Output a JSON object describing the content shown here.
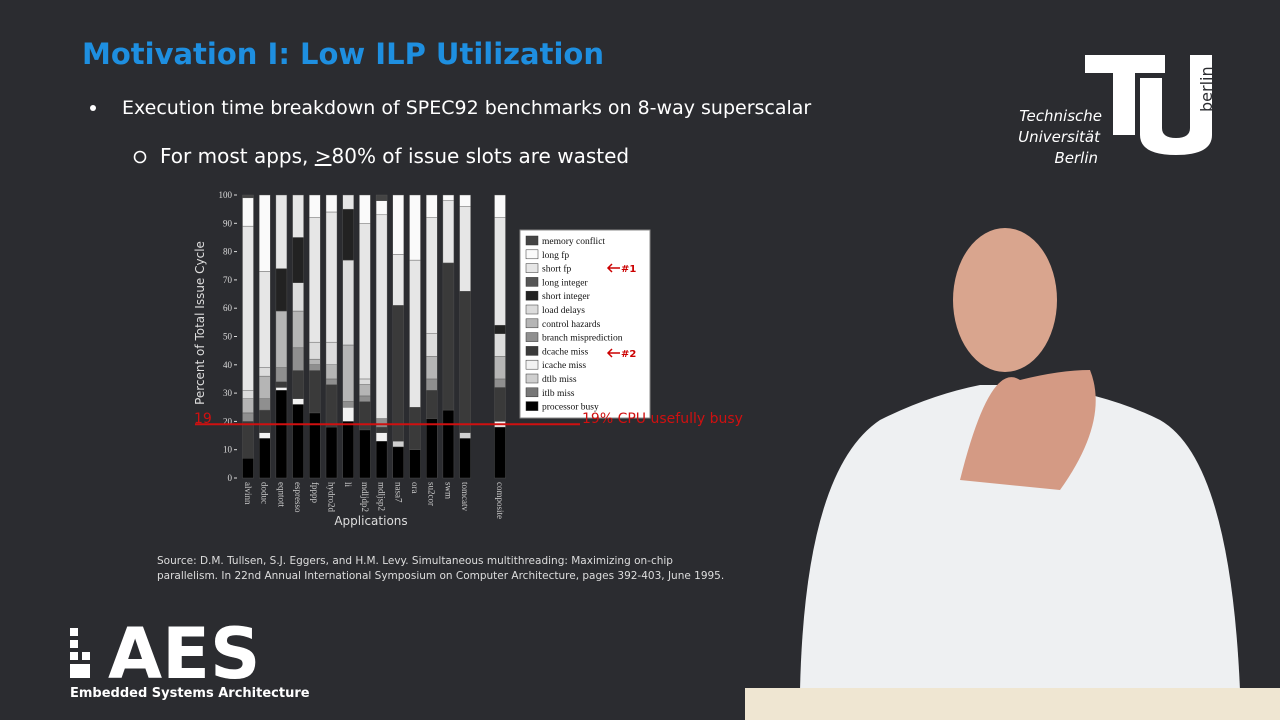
{
  "slide": {
    "title": "Motivation I: Low ILP Utilization",
    "bullet1": "Execution time breakdown of SPEC92 benchmarks on 8-way superscalar",
    "bullet2_pre": "For most apps, ",
    "bullet2_u": ">",
    "bullet2_post": "80% of issue slots are wasted",
    "source1": "Source: D.M. Tullsen, S.J. Eggers, and H.M. Levy. Simultaneous multithreading: Maximizing on-chip",
    "source2": "parallelism.  In 22nd Annual International Symposium on Computer Architecture, pages 392-403, June 1995.",
    "tu_lines": [
      "Technische",
      "Universität",
      "Berlin"
    ],
    "tu_side": "berlin",
    "aes": "AES",
    "aes_sub": "Embedded Systems Architecture"
  },
  "chart_data": {
    "type": "stacked_bar",
    "ylabel": "Percent of Total Issue Cycle",
    "xlabel": "Applications",
    "categories": [
      "alvinn",
      "doduc",
      "eqntott",
      "espresso",
      "fpppp",
      "hydro2d",
      "li",
      "mdljdp2",
      "mdljsp2",
      "nasa7",
      "ora",
      "su2cor",
      "swm",
      "tomcatv",
      "composite"
    ],
    "ylim": [
      0,
      100
    ],
    "yticks": [
      0,
      10,
      20,
      30,
      40,
      50,
      60,
      70,
      80,
      90,
      100
    ],
    "busy_line": 19,
    "busy_label": "19% CPU usefully busy",
    "annotations": [
      "#1",
      "#2"
    ],
    "series": [
      {
        "name": "processor busy",
        "color": "#000000",
        "values": [
          7,
          14,
          31,
          26,
          23,
          18,
          20,
          17,
          13,
          11,
          10,
          21,
          24,
          14,
          18
        ]
      },
      {
        "name": "itlb miss",
        "color": "#777777",
        "values": [
          0,
          0,
          0,
          0,
          0,
          0,
          0,
          0,
          0,
          0,
          0,
          0,
          0,
          0,
          0
        ]
      },
      {
        "name": "dtlb miss",
        "color": "#cfcfcf",
        "values": [
          0,
          0,
          0,
          0,
          0,
          0,
          0,
          0,
          0,
          2,
          0,
          0,
          0,
          2,
          0
        ]
      },
      {
        "name": "icache miss",
        "color": "#f2f2f2",
        "values": [
          0,
          2,
          1,
          2,
          0,
          0,
          5,
          0,
          3,
          0,
          0,
          0,
          0,
          0,
          2
        ]
      },
      {
        "name": "dcache miss",
        "color": "#3a3a3a",
        "values": [
          13,
          8,
          2,
          10,
          15,
          15,
          0,
          10,
          2,
          48,
          15,
          10,
          52,
          50,
          12
        ]
      },
      {
        "name": "branch misprediction",
        "color": "#8f8f8f",
        "values": [
          3,
          4,
          5,
          8,
          2,
          2,
          2,
          2,
          3,
          0,
          0,
          4,
          0,
          0,
          3
        ]
      },
      {
        "name": "control hazards",
        "color": "#b5b5b5",
        "values": [
          5,
          8,
          20,
          13,
          2,
          5,
          20,
          4,
          0,
          0,
          0,
          8,
          0,
          0,
          8
        ]
      },
      {
        "name": "load delays",
        "color": "#dcdcdc",
        "values": [
          3,
          3,
          0,
          10,
          6,
          8,
          30,
          2,
          0,
          0,
          0,
          8,
          0,
          0,
          8
        ]
      },
      {
        "name": "short integer",
        "color": "#222222",
        "values": [
          0,
          0,
          15,
          16,
          0,
          0,
          18,
          0,
          0,
          0,
          0,
          0,
          0,
          0,
          3
        ]
      },
      {
        "name": "long integer",
        "color": "#555555",
        "values": [
          0,
          0,
          0,
          0,
          0,
          0,
          0,
          0,
          0,
          0,
          0,
          0,
          0,
          0,
          0
        ]
      },
      {
        "name": "short fp",
        "color": "#e6e6e6",
        "values": [
          58,
          34,
          26,
          15,
          44,
          46,
          5,
          55,
          72,
          18,
          52,
          41,
          22,
          30,
          38
        ]
      },
      {
        "name": "long fp",
        "color": "#fafafa",
        "values": [
          10,
          27,
          0,
          0,
          8,
          6,
          0,
          10,
          5,
          21,
          23,
          8,
          2,
          4,
          8
        ]
      },
      {
        "name": "memory conflict",
        "color": "#444444",
        "values": [
          1,
          0,
          0,
          0,
          0,
          0,
          0,
          0,
          2,
          0,
          0,
          0,
          0,
          0,
          0
        ]
      }
    ]
  }
}
